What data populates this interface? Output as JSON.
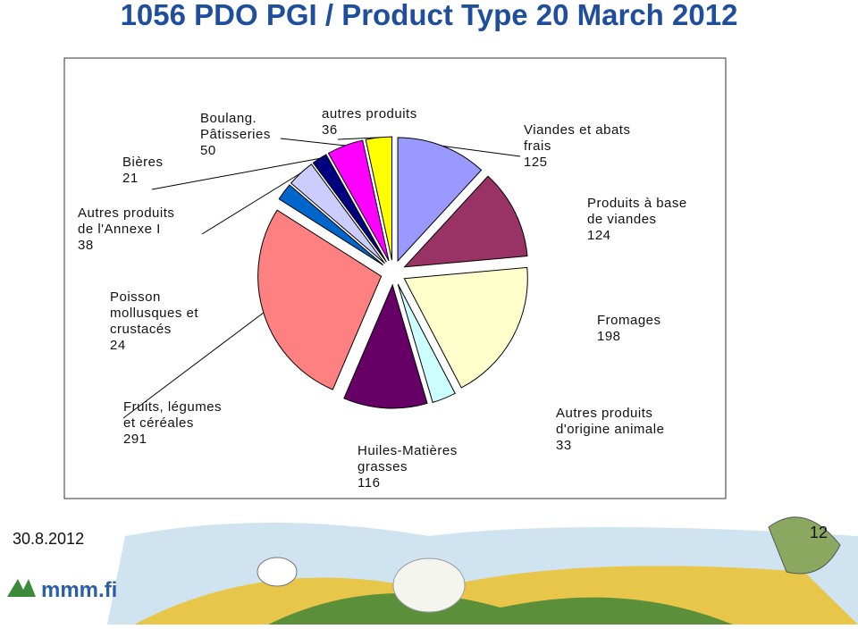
{
  "chart_data": {
    "type": "pie",
    "title": "1056 PDO PGI / Product Type 20 March 2012",
    "categories": [
      [
        "Viandes et abats",
        "frais"
      ],
      [
        "Produits à base",
        "de viandes"
      ],
      [
        "Fromages"
      ],
      [
        "Autres produits",
        "d'origine animale"
      ],
      [
        "Huiles-Matières",
        "grasses"
      ],
      [
        "Fruits, légumes",
        "et céréales"
      ],
      [
        "Poisson",
        "mollusques et",
        "crustacés"
      ],
      [
        "Autres produits",
        "de l'Annexe I"
      ],
      [
        "Bières"
      ],
      [
        "Boulang.",
        "Pâtisseries"
      ],
      [
        "autres produits"
      ]
    ],
    "values": [
      125,
      124,
      198,
      33,
      116,
      291,
      24,
      38,
      21,
      50,
      36
    ],
    "colors": [
      "#9999ff",
      "#993366",
      "#ffffcc",
      "#ccffff",
      "#660066",
      "#ff8080",
      "#0066cc",
      "#ccccff",
      "#000080",
      "#ff00ff",
      "#ffff00"
    ]
  },
  "footer": {
    "date": "30.8.2012",
    "page": 12,
    "logo": "mmm.fi"
  }
}
